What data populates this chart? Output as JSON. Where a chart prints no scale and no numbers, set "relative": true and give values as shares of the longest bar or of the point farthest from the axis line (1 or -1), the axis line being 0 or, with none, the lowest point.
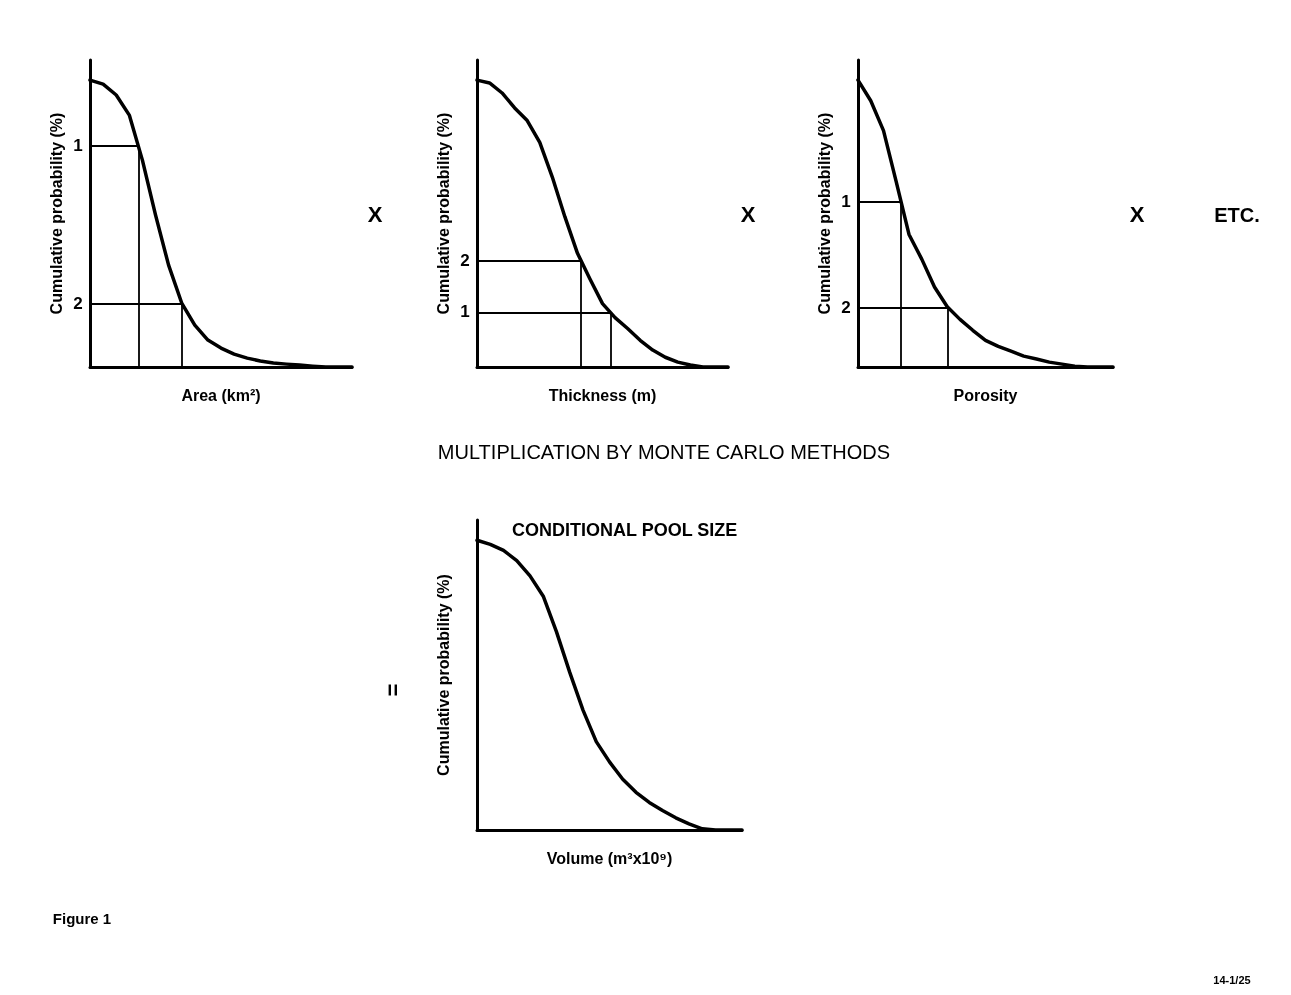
{
  "chart_data": [
    {
      "type": "line",
      "ylabel": "Cumulative probability (%)",
      "xlabel": "Area (km²)",
      "relative": true,
      "marker": "none",
      "line_style": "solid",
      "color": "#000000",
      "categories": [
        null,
        null,
        null,
        null,
        null,
        null,
        null,
        null,
        null,
        null,
        null,
        null,
        null,
        null,
        null,
        null,
        null,
        null,
        null,
        null,
        null
      ],
      "values": [
        1.0,
        0.986,
        0.948,
        0.878,
        0.721,
        0.53,
        0.355,
        0.223,
        0.146,
        0.094,
        0.066,
        0.045,
        0.031,
        0.021,
        0.014,
        0.01,
        0.007,
        0.003,
        0,
        0,
        0
      ],
      "ref_lines": [
        {
          "axis": "y",
          "value": 0.77
        },
        {
          "axis": "y",
          "value": 0.22
        }
      ],
      "annotations": [
        "1",
        "2",
        "X"
      ]
    },
    {
      "type": "line",
      "ylabel": "Cumulative probability (%)",
      "xlabel": "Thickness (m)",
      "relative": true,
      "marker": "none",
      "line_style": "solid",
      "color": "#000000",
      "categories": [
        null,
        null,
        null,
        null,
        null,
        null,
        null,
        null,
        null,
        null,
        null,
        null,
        null,
        null,
        null,
        null,
        null,
        null,
        null,
        null,
        null
      ],
      "values": [
        1.0,
        0.99,
        0.955,
        0.903,
        0.859,
        0.783,
        0.662,
        0.524,
        0.397,
        0.307,
        0.221,
        0.172,
        0.134,
        0.093,
        0.059,
        0.034,
        0.017,
        0.007,
        0,
        0,
        0
      ],
      "ref_lines": [
        {
          "axis": "y",
          "value": 0.37
        },
        {
          "axis": "y",
          "value": 0.19
        }
      ],
      "annotations": [
        "2",
        "1",
        "X"
      ]
    },
    {
      "type": "line",
      "ylabel": "Cumulative probability (%)",
      "xlabel": "Porosity",
      "relative": true,
      "marker": "none",
      "line_style": "solid",
      "color": "#000000",
      "categories": [
        null,
        null,
        null,
        null,
        null,
        null,
        null,
        null,
        null,
        null,
        null,
        null,
        null,
        null,
        null,
        null,
        null,
        null,
        null,
        null,
        null
      ],
      "values": [
        1.0,
        0.928,
        0.824,
        0.645,
        0.462,
        0.376,
        0.279,
        0.21,
        0.166,
        0.128,
        0.093,
        0.072,
        0.055,
        0.038,
        0.028,
        0.017,
        0.01,
        0.003,
        0,
        0,
        0
      ],
      "ref_lines": [
        {
          "axis": "y",
          "value": 0.576
        },
        {
          "axis": "y",
          "value": 0.207
        }
      ],
      "annotations": [
        "1",
        "2",
        "X",
        "ETC."
      ]
    },
    {
      "type": "line",
      "title": "CONDITIONAL POOL SIZE",
      "ylabel": "Cumulative probability (%)",
      "xlabel": "Volume (m³x10⁹)",
      "relative": true,
      "marker": "none",
      "line_style": "solid",
      "color": "#000000",
      "categories": [
        null,
        null,
        null,
        null,
        null,
        null,
        null,
        null,
        null,
        null,
        null,
        null,
        null,
        null,
        null,
        null,
        null,
        null,
        null,
        null,
        null
      ],
      "values": [
        1.0,
        0.986,
        0.965,
        0.93,
        0.877,
        0.807,
        0.684,
        0.544,
        0.414,
        0.305,
        0.235,
        0.175,
        0.13,
        0.095,
        0.067,
        0.042,
        0.021,
        0.004,
        0,
        0,
        0
      ],
      "annotations": [
        "=",
        "MULTIPLICATION BY MONTE CARLO METHODS",
        "Figure 1",
        "14-1/25"
      ]
    }
  ]
}
